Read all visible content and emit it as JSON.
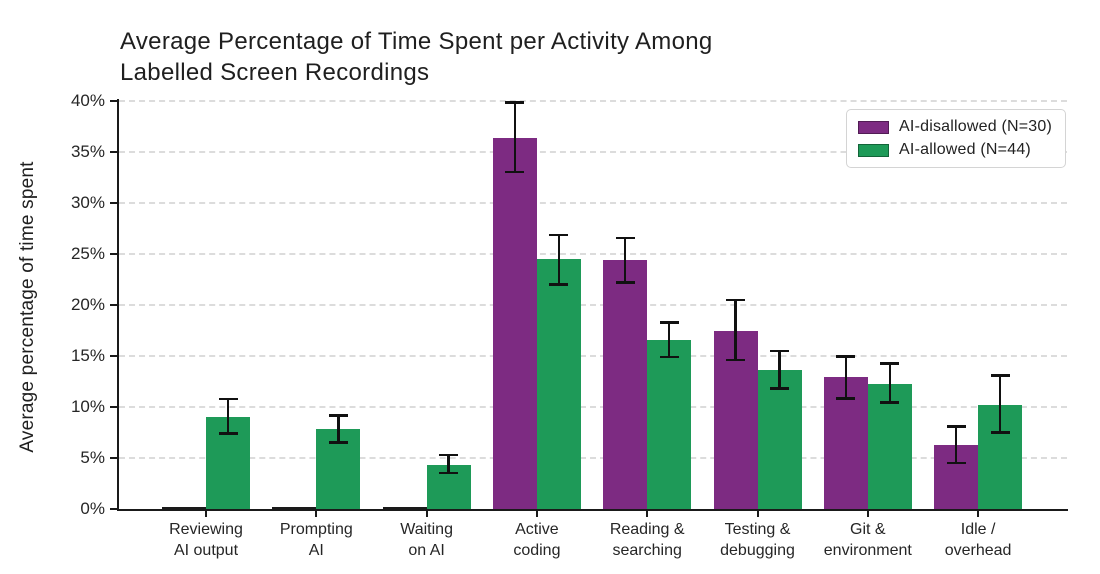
{
  "title": {
    "line1": "Average Percentage of Time Spent per Activity Among",
    "line2": "Labelled Screen Recordings"
  },
  "chart_data": {
    "type": "bar",
    "title": "Average Percentage of Time Spent per Activity Among Labelled Screen Recordings",
    "xlabel": "",
    "ylabel": "Average percentage of time spent",
    "ylim": [
      0,
      40
    ],
    "ytick_values": [
      0,
      5,
      10,
      15,
      20,
      25,
      30,
      35,
      40
    ],
    "ytick_labels": [
      "0%",
      "5%",
      "10%",
      "15%",
      "20%",
      "25%",
      "30%",
      "35%",
      "40%"
    ],
    "grid": "horizontal-dashed",
    "legend_position": "top-right-inside",
    "categories": [
      "Reviewing\nAI output",
      "Prompting\nAI",
      "Waiting\non AI",
      "Active\ncoding",
      "Reading &\nsearching",
      "Testing &\ndebugging",
      "Git &\nenvironment",
      "Idle /\noverhead"
    ],
    "series": [
      {
        "name": "AI-disallowed (N=30)",
        "color": "#7d2b82",
        "values": [
          0.1,
          0.1,
          0.1,
          36.4,
          24.4,
          17.5,
          12.9,
          6.3
        ],
        "error_low": [
          null,
          null,
          null,
          33.0,
          22.2,
          14.6,
          10.8,
          4.5
        ],
        "error_high": [
          null,
          null,
          null,
          39.9,
          26.6,
          20.5,
          15.0,
          8.1
        ]
      },
      {
        "name": "AI-allowed (N=44)",
        "color": "#1e9a58",
        "values": [
          9.0,
          7.8,
          4.3,
          24.5,
          16.6,
          13.6,
          12.3,
          10.2
        ],
        "error_low": [
          7.4,
          6.5,
          3.5,
          22.0,
          14.9,
          11.8,
          10.4,
          7.5
        ],
        "error_high": [
          10.8,
          9.2,
          5.3,
          26.9,
          18.3,
          15.5,
          14.3,
          13.1
        ]
      }
    ],
    "error_bar_color": "#111111",
    "gridline_color": "#dcdcdc",
    "axis_color": "#1a1a1a",
    "text_color": "#262626"
  }
}
